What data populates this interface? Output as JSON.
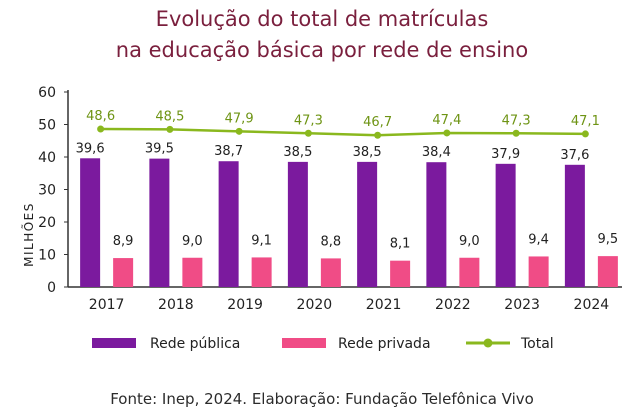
{
  "title_line1": "Evolução do total de matrículas",
  "title_line2": "na educação básica por rede de ensino",
  "source": "Fonte: Inep, 2024. Elaboração: Fundação Telefônica Vivo",
  "colors": {
    "title": "#7a1f3d",
    "publica": "#7b1a9e",
    "privada": "#f04c86",
    "total": "#8ab81e",
    "total_label": "#6e9414",
    "text": "#222222"
  },
  "chart_data": {
    "type": "bar",
    "title": "Evolução do total de matrículas na educação básica por rede de ensino",
    "ylabel": "MILHÕES",
    "xlabel": "",
    "ylim": [
      0,
      60
    ],
    "yticks": [
      0,
      10,
      20,
      30,
      40,
      50,
      60
    ],
    "categories": [
      "2017",
      "2018",
      "2019",
      "2020",
      "2021",
      "2022",
      "2023",
      "2024"
    ],
    "series": [
      {
        "name": "Rede pública",
        "kind": "bar",
        "values": [
          39.6,
          39.5,
          38.7,
          38.5,
          38.5,
          38.4,
          37.9,
          37.6
        ],
        "labels": [
          "39,6",
          "39,5",
          "38,7",
          "38,5",
          "38,5",
          "38,4",
          "37,9",
          "37,6"
        ]
      },
      {
        "name": "Rede privada",
        "kind": "bar",
        "values": [
          8.9,
          9.0,
          9.1,
          8.8,
          8.1,
          9.0,
          9.4,
          9.5
        ],
        "labels": [
          "8,9",
          "9,0",
          "9,1",
          "8,8",
          "8,1",
          "9,0",
          "9,4",
          "9,5"
        ]
      },
      {
        "name": "Total",
        "kind": "line",
        "values": [
          48.6,
          48.5,
          47.9,
          47.3,
          46.7,
          47.4,
          47.3,
          47.1
        ],
        "labels": [
          "48,6",
          "48,5",
          "47,9",
          "47,3",
          "46,7",
          "47,4",
          "47,3",
          "47,1"
        ]
      }
    ],
    "legend": [
      "Rede pública",
      "Rede privada",
      "Total"
    ],
    "legend_position": "bottom"
  }
}
